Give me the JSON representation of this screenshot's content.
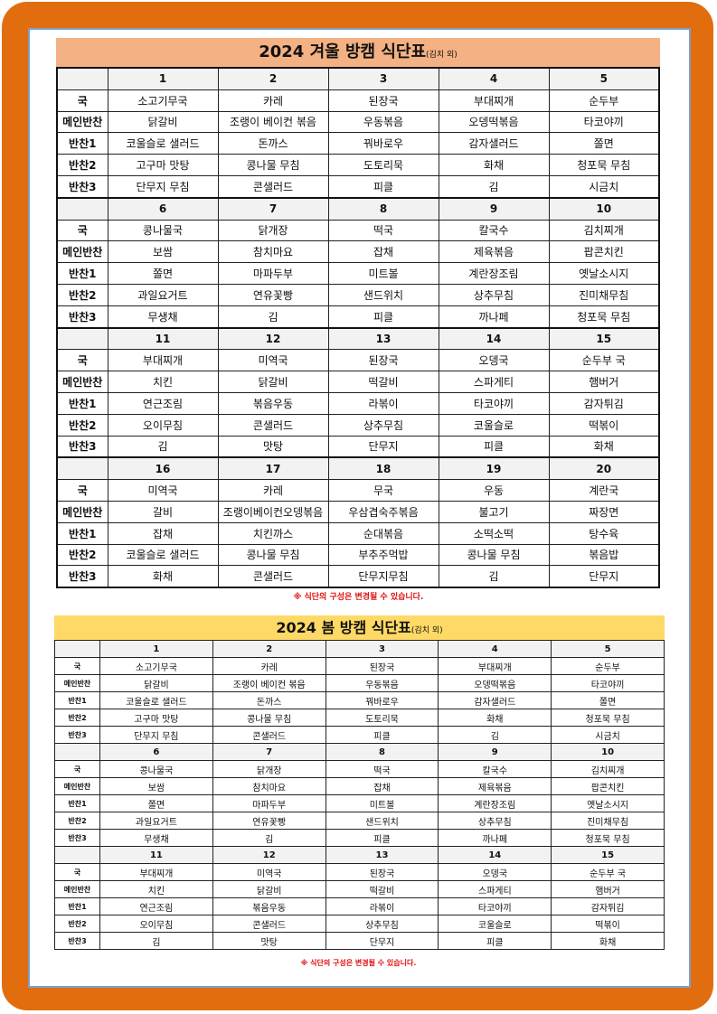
{
  "winter": {
    "title": "2024 겨울 방캠 식단표",
    "title_note": "(김치 외)",
    "header_color": "#f4b183",
    "row_labels": [
      "국",
      "메인반찬",
      "반찬1",
      "반찬2",
      "반찬3"
    ],
    "weeks": [
      {
        "days": [
          "1",
          "2",
          "3",
          "4",
          "5"
        ],
        "rows": [
          [
            "소고기무국",
            "카레",
            "된장국",
            "부대찌개",
            "순두부"
          ],
          [
            "닭갈비",
            "조랭이 베이컨 볶음",
            "우동볶음",
            "오뎅떡볶음",
            "타코야끼"
          ],
          [
            "코울슬로 샐러드",
            "돈까스",
            "꿔바로우",
            "감자샐러드",
            "쫄면"
          ],
          [
            "고구마 맛탕",
            "콩나물 무침",
            "도토리묵",
            "화채",
            "청포묵 무침"
          ],
          [
            "단무지 무침",
            "콘샐러드",
            "피클",
            "김",
            "시금치"
          ]
        ]
      },
      {
        "days": [
          "6",
          "7",
          "8",
          "9",
          "10"
        ],
        "rows": [
          [
            "콩나물국",
            "닭개장",
            "떡국",
            "칼국수",
            "김치찌개"
          ],
          [
            "보쌈",
            "참치마요",
            "잡채",
            "제육볶음",
            "팝콘치킨"
          ],
          [
            "쫄면",
            "마파두부",
            "미트볼",
            "계란장조림",
            "옛날소시지"
          ],
          [
            "과일요거트",
            "연유꽃빵",
            "샌드위치",
            "상추무침",
            "진미채무침"
          ],
          [
            "무생채",
            "김",
            "피클",
            "까나페",
            "청포묵 무침"
          ]
        ]
      },
      {
        "days": [
          "11",
          "12",
          "13",
          "14",
          "15"
        ],
        "rows": [
          [
            "부대찌개",
            "미역국",
            "된장국",
            "오뎅국",
            "순두부 국"
          ],
          [
            "치킨",
            "닭갈비",
            "떡갈비",
            "스파게티",
            "햄버거"
          ],
          [
            "연근조림",
            "볶음우동",
            "라볶이",
            "타코야끼",
            "감자튀김"
          ],
          [
            "오이무침",
            "콘샐러드",
            "상추무침",
            "코울슬로",
            "떡볶이"
          ],
          [
            "김",
            "맛탕",
            "단무지",
            "피클",
            "화채"
          ]
        ]
      },
      {
        "days": [
          "16",
          "17",
          "18",
          "19",
          "20"
        ],
        "rows": [
          [
            "미역국",
            "카레",
            "무국",
            "우동",
            "계란국"
          ],
          [
            "갈비",
            "조랭이베이컨오뎅볶음",
            "우삼겹숙주볶음",
            "불고기",
            "짜장면"
          ],
          [
            "잡채",
            "치킨까스",
            "순대볶음",
            "소떡소떡",
            "탕수육"
          ],
          [
            "코울슬로 샐러드",
            "콩나물 무침",
            "부추주먹밥",
            "콩나물  무침",
            "볶음밥"
          ],
          [
            "화채",
            "콘샐러드",
            "단무지무침",
            "김",
            "단무지"
          ]
        ]
      }
    ],
    "note": "※ 식단의 구성은 변경될 수 있습니다."
  },
  "spring": {
    "title": "2024 봄 방캠 식단표",
    "title_note": "(김치 외)",
    "header_color": "#ffd966",
    "row_labels": [
      "국",
      "메인반찬",
      "반찬1",
      "반찬2",
      "반찬3"
    ],
    "weeks": [
      {
        "days": [
          "1",
          "2",
          "3",
          "4",
          "5"
        ],
        "rows": [
          [
            "소고기무국",
            "카레",
            "된장국",
            "부대찌개",
            "순두부"
          ],
          [
            "닭갈비",
            "조랭이 베이컨 볶음",
            "우동볶음",
            "오뎅떡볶음",
            "타코야끼"
          ],
          [
            "코울슬로 샐러드",
            "돈까스",
            "꿔바로우",
            "감자샐러드",
            "쫄면"
          ],
          [
            "고구마 맛탕",
            "콩나물 무침",
            "도토리묵",
            "화채",
            "청포묵 무침"
          ],
          [
            "단무지 무침",
            "콘샐러드",
            "피클",
            "김",
            "시금치"
          ]
        ]
      },
      {
        "days": [
          "6",
          "7",
          "8",
          "9",
          "10"
        ],
        "rows": [
          [
            "콩나물국",
            "닭개장",
            "떡국",
            "칼국수",
            "김치찌개"
          ],
          [
            "보쌈",
            "참치마요",
            "잡채",
            "제육볶음",
            "팝콘치킨"
          ],
          [
            "쫄면",
            "마파두부",
            "미트볼",
            "계란장조림",
            "옛날소시지"
          ],
          [
            "과일요거트",
            "연유꽃빵",
            "샌드위치",
            "상추무침",
            "진미채무침"
          ],
          [
            "무생채",
            "김",
            "피클",
            "까나페",
            "청포묵 무침"
          ]
        ]
      },
      {
        "days": [
          "11",
          "12",
          "13",
          "14",
          "15"
        ],
        "rows": [
          [
            "부대찌개",
            "미역국",
            "된장국",
            "오뎅국",
            "순두부 국"
          ],
          [
            "치킨",
            "닭갈비",
            "떡갈비",
            "스파게티",
            "햄버거"
          ],
          [
            "연근조림",
            "볶음우동",
            "라볶이",
            "타코야끼",
            "감자튀김"
          ],
          [
            "오이무침",
            "콘샐러드",
            "상추무침",
            "코울슬로",
            "떡볶이"
          ],
          [
            "김",
            "맛탕",
            "단무지",
            "피클",
            "화채"
          ]
        ]
      }
    ],
    "note": "※ 식단의 구성은 변경될 수 있습니다."
  }
}
